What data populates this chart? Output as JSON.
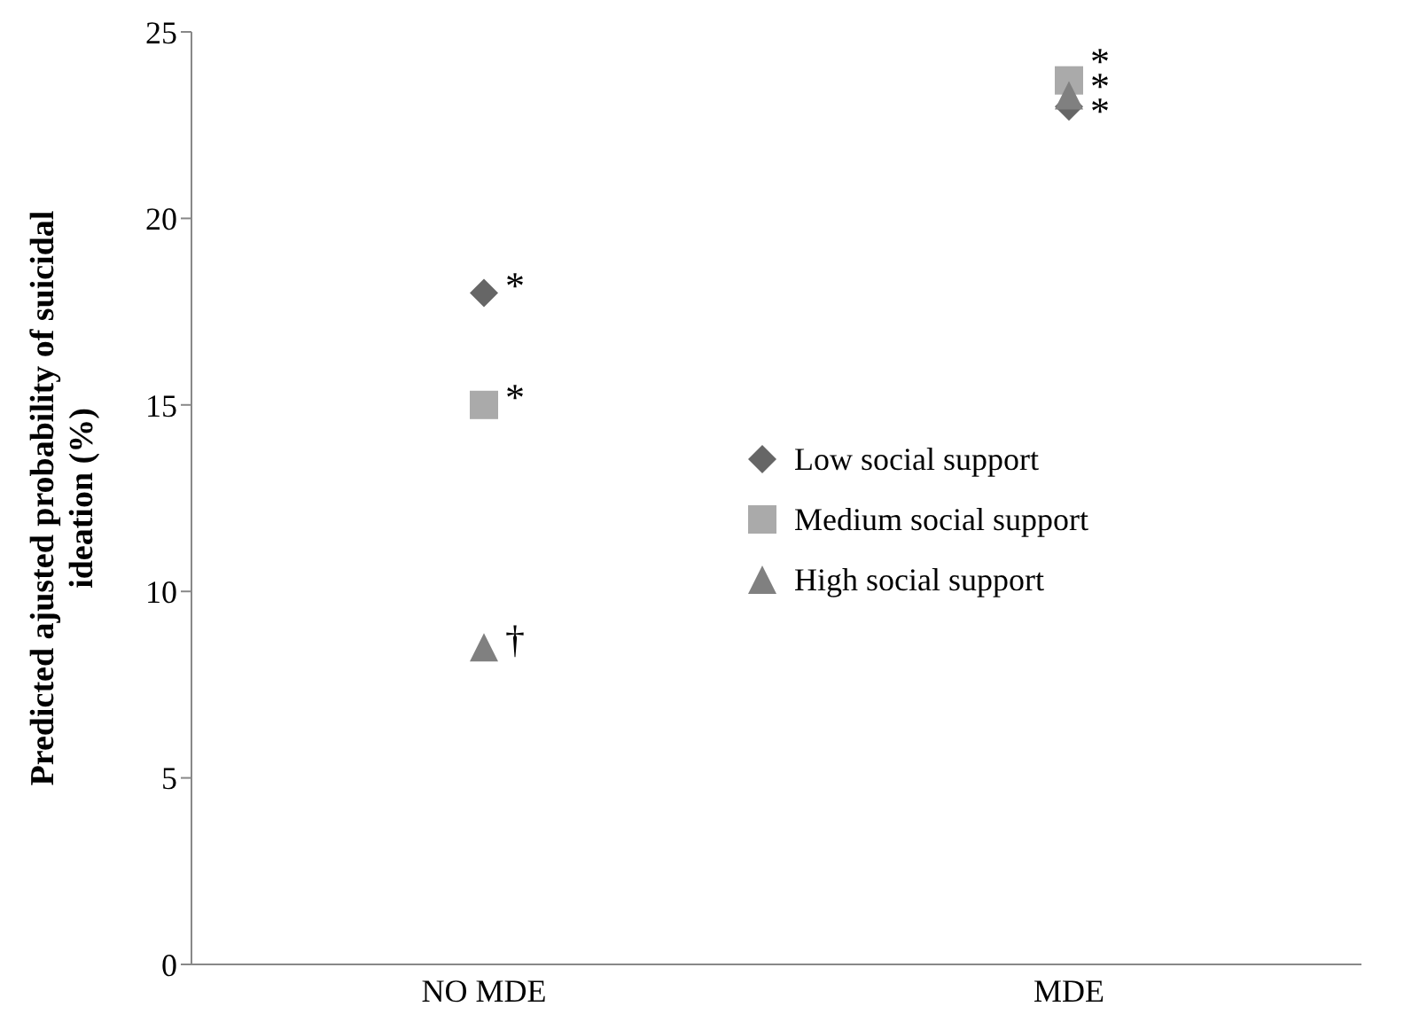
{
  "chart_data": {
    "type": "scatter",
    "ylabel": "Predicted ajusted probability of suicidal ideation (%)",
    "categories": [
      "NO MDE",
      "MDE"
    ],
    "series": [
      {
        "name": "Low social support",
        "color": "#666666",
        "marker": "diamond",
        "values": [
          18.0,
          23.0
        ]
      },
      {
        "name": "Medium social support",
        "color": "#aaaaaa",
        "marker": "square",
        "values": [
          15.0,
          23.7
        ]
      },
      {
        "name": "High social support",
        "color": "#808080",
        "marker": "triangle",
        "values": [
          8.5,
          23.3
        ]
      }
    ],
    "ylim": [
      0,
      25
    ],
    "yticks": [
      0,
      5,
      10,
      15,
      20,
      25
    ],
    "grid": false,
    "legend": "right",
    "annotations": [
      {
        "text": "*",
        "x": "NO MDE",
        "y": 18.0
      },
      {
        "text": "*",
        "x": "NO MDE",
        "y": 15.0
      },
      {
        "text": "†",
        "x": "NO MDE",
        "y": 8.5
      },
      {
        "text": "*",
        "x": "MDE",
        "y": 23.7
      },
      {
        "text": "*",
        "x": "MDE",
        "y": 23.3
      },
      {
        "text": "*",
        "x": "MDE",
        "y": 23.0
      }
    ]
  }
}
